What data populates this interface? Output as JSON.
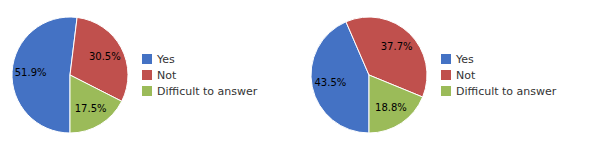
{
  "chart_data": [
    {
      "type": "pie",
      "categories": [
        "Yes",
        "Not",
        "Difficult to answer"
      ],
      "values": [
        51.9,
        30.5,
        17.5
      ],
      "value_labels": [
        "51.9%",
        "30.5%",
        "17.5%"
      ],
      "colors": [
        "#4472c4",
        "#c0504d",
        "#9bbb59"
      ],
      "data_labels": true,
      "legend": "right"
    },
    {
      "type": "pie",
      "categories": [
        "Yes",
        "Not",
        "Difficult to answer"
      ],
      "values": [
        43.5,
        37.7,
        18.8
      ],
      "value_labels": [
        "43.5%",
        "37.7%",
        "18.8%"
      ],
      "colors": [
        "#4472c4",
        "#c0504d",
        "#9bbb59"
      ],
      "data_labels": true,
      "legend": "right"
    }
  ]
}
